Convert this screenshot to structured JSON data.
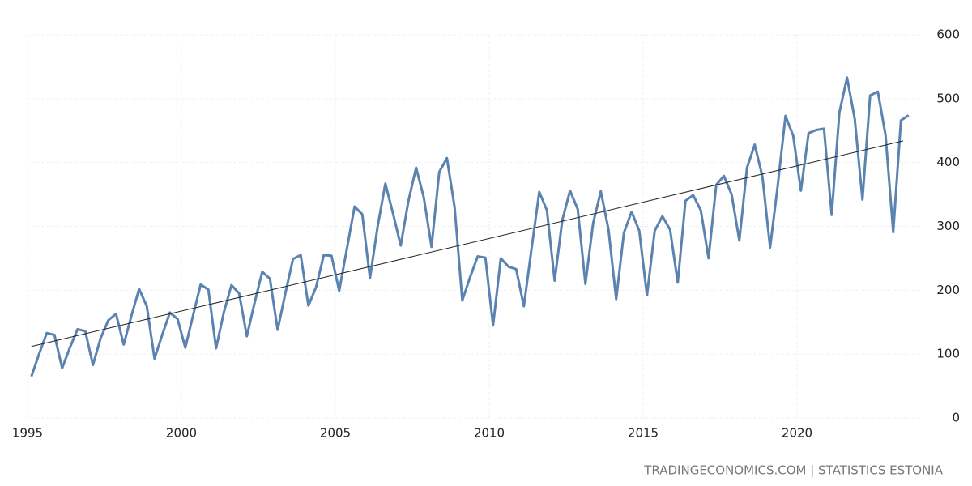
{
  "chart_data": {
    "type": "line",
    "x": [
      1995.125,
      1995.375,
      1995.625,
      1995.875,
      1996.125,
      1996.375,
      1996.625,
      1996.875,
      1997.125,
      1997.375,
      1997.625,
      1997.875,
      1998.125,
      1998.375,
      1998.625,
      1998.875,
      1999.125,
      1999.375,
      1999.625,
      1999.875,
      2000.125,
      2000.375,
      2000.625,
      2000.875,
      2001.125,
      2001.375,
      2001.625,
      2001.875,
      2002.125,
      2002.375,
      2002.625,
      2002.875,
      2003.125,
      2003.375,
      2003.625,
      2003.875,
      2004.125,
      2004.375,
      2004.625,
      2004.875,
      2005.125,
      2005.375,
      2005.625,
      2005.875,
      2006.125,
      2006.375,
      2006.625,
      2006.875,
      2007.125,
      2007.375,
      2007.625,
      2007.875,
      2008.125,
      2008.375,
      2008.625,
      2008.875,
      2009.125,
      2009.375,
      2009.625,
      2009.875,
      2010.125,
      2010.375,
      2010.625,
      2010.875,
      2011.125,
      2011.375,
      2011.625,
      2011.875,
      2012.125,
      2012.375,
      2012.625,
      2012.875,
      2013.125,
      2013.375,
      2013.625,
      2013.875,
      2014.125,
      2014.375,
      2014.625,
      2014.875,
      2015.125,
      2015.375,
      2015.625,
      2015.875,
      2016.125,
      2016.375,
      2016.625,
      2016.875,
      2017.125,
      2017.375,
      2017.625,
      2017.875,
      2018.125,
      2018.375,
      2018.625,
      2018.875,
      2019.125,
      2019.375,
      2019.625,
      2019.875,
      2020.125,
      2020.375,
      2020.625,
      2020.875,
      2021.125,
      2021.375,
      2021.625,
      2021.875,
      2022.125,
      2022.375,
      2022.625,
      2022.875,
      2023.125,
      2023.375,
      2023.625
    ],
    "series": [
      {
        "color": "#5b83b0",
        "values": [
          65,
          100,
          133,
          130,
          78,
          110,
          139,
          136,
          83,
          125,
          153,
          163,
          115,
          160,
          202,
          175,
          93,
          130,
          165,
          155,
          110,
          160,
          209,
          201,
          109,
          165,
          208,
          195,
          128,
          180,
          229,
          218,
          138,
          195,
          249,
          255,
          176,
          205,
          255,
          254,
          199,
          265,
          331,
          319,
          219,
          300,
          367,
          320,
          270,
          340,
          392,
          345,
          268,
          385,
          407,
          330,
          184,
          220,
          253,
          251,
          145,
          250,
          237,
          233,
          175,
          265,
          354,
          325,
          215,
          310,
          356,
          327,
          210,
          305,
          355,
          295,
          186,
          290,
          323,
          293,
          192,
          293,
          316,
          295,
          212,
          340,
          349,
          325,
          250,
          365,
          379,
          350,
          278,
          392,
          428,
          378,
          267,
          365,
          473,
          442,
          356,
          446,
          451,
          453,
          318,
          478,
          533,
          468,
          342,
          505,
          511,
          443,
          291,
          466,
          474
        ]
      }
    ],
    "trend": {
      "color": "#222222",
      "x": [
        1995.125,
        2023.45
      ],
      "values": [
        112,
        434
      ]
    },
    "xlim": [
      1995,
      2024
    ],
    "xticks": [
      1995,
      2000,
      2005,
      2010,
      2015,
      2020
    ],
    "ylim": [
      0,
      600
    ],
    "yticks": [
      0,
      100,
      200,
      300,
      400,
      500,
      600
    ],
    "grid": true,
    "source": "TRADINGECONOMICS.COM | STATISTICS ESTONIA"
  }
}
